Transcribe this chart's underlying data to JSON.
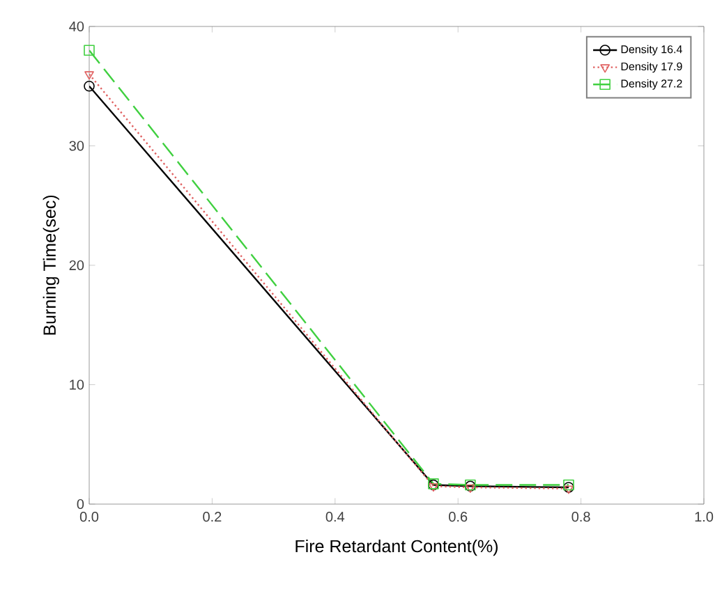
{
  "chart_data": {
    "type": "line",
    "xlabel": "Fire Retardant Content(%)",
    "ylabel": "Burning Time(sec)",
    "x": [
      0,
      0.56,
      0.62,
      0.78
    ],
    "xlim": [
      0,
      1
    ],
    "xticks": [
      {
        "value": 0,
        "label": "0.0"
      },
      {
        "value": 0.2,
        "label": "0.2"
      },
      {
        "value": 0.4,
        "label": "0.4"
      },
      {
        "value": 0.6,
        "label": "0.6"
      },
      {
        "value": 0.8,
        "label": "0.8"
      },
      {
        "value": 1,
        "label": "1.0"
      }
    ],
    "ylim": [
      0,
      40
    ],
    "yticks": [
      0,
      10,
      20,
      30,
      40
    ],
    "grid": false,
    "legend": "top right",
    "series": [
      {
        "name": "Density 16.4",
        "color": "#000000",
        "marker": "circle",
        "line_style": "solid",
        "values": [
          35,
          1.6,
          1.5,
          1.4
        ]
      },
      {
        "name": "Density 17.9",
        "color": "#e06060",
        "marker": "triangle",
        "line_style": "dotted",
        "values": [
          36,
          1.5,
          1.4,
          1.3
        ]
      },
      {
        "name": "Density 27.2",
        "color": "#40d040",
        "marker": "square",
        "line_style": "dashed",
        "values": [
          38,
          1.7,
          1.6,
          1.6
        ]
      }
    ]
  }
}
